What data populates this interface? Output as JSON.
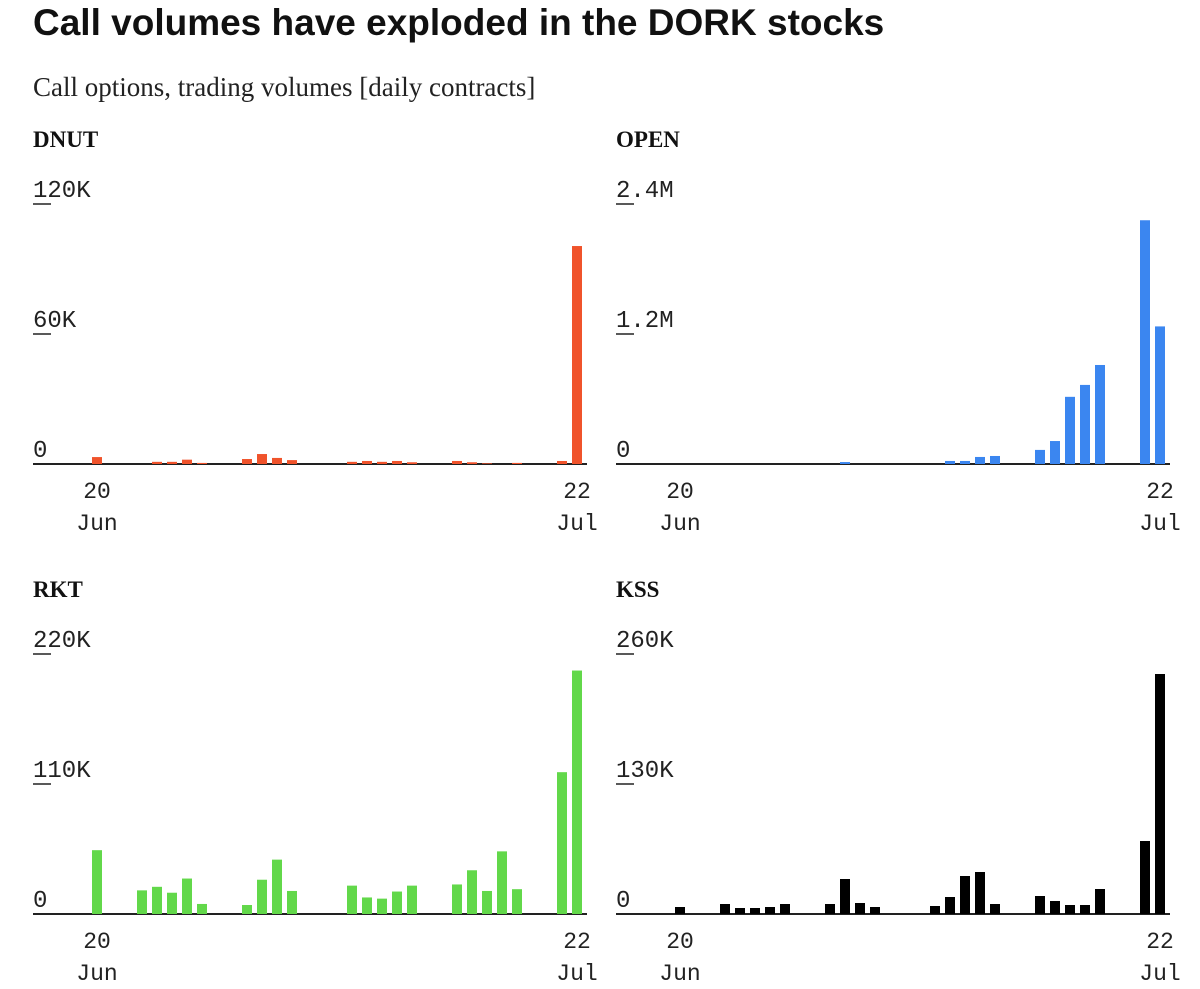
{
  "title": "Call volumes have exploded in the DORK stocks",
  "subtitle": "Call options, trading volumes [daily contracts]",
  "chart_data": [
    {
      "type": "bar",
      "title": "DNUT",
      "color": "#f0532b",
      "categories": [
        "20 Jun",
        null,
        null,
        null,
        null,
        null,
        null,
        null,
        null,
        null,
        null,
        null,
        null,
        null,
        null,
        null,
        null,
        null,
        null,
        null,
        null,
        null,
        null,
        null,
        null,
        null,
        null,
        null,
        null,
        null,
        null,
        null,
        "22 Jul"
      ],
      "values": [
        3200,
        null,
        null,
        0,
        1000,
        1000,
        2000,
        500,
        null,
        null,
        2300,
        4600,
        2800,
        1800,
        null,
        null,
        null,
        1000,
        1400,
        1000,
        1400,
        800,
        null,
        null,
        1400,
        800,
        300,
        0,
        500,
        null,
        null,
        1400,
        100600
      ],
      "ylim": [
        0,
        120000
      ],
      "yticks": [
        0,
        {
          "value": 60000,
          "label": "60K"
        },
        {
          "value": 120000,
          "label": "120K"
        }
      ]
    },
    {
      "type": "bar",
      "title": "OPEN",
      "color": "#3b86f0",
      "categories": [
        "20 Jun",
        null,
        null,
        null,
        null,
        null,
        null,
        null,
        null,
        null,
        null,
        null,
        null,
        null,
        null,
        null,
        null,
        null,
        null,
        null,
        null,
        null,
        null,
        null,
        null,
        null,
        null,
        null,
        null,
        null,
        null,
        null,
        "22 Jul"
      ],
      "values": [
        0,
        null,
        null,
        0,
        0,
        0,
        0,
        0,
        null,
        null,
        0,
        18000,
        0,
        0,
        null,
        null,
        null,
        0,
        28000,
        28000,
        65000,
        74000,
        null,
        null,
        130000,
        212000,
        620000,
        730000,
        914000,
        null,
        null,
        2250000,
        1270000
      ],
      "ylim": [
        0,
        2400000
      ],
      "yticks": [
        0,
        {
          "value": 1200000,
          "label": "1.2M"
        },
        {
          "value": 2400000,
          "label": "2.4M"
        }
      ]
    },
    {
      "type": "bar",
      "title": "RKT",
      "color": "#62d84a",
      "categories": [
        "20 Jun",
        null,
        null,
        null,
        null,
        null,
        null,
        null,
        null,
        null,
        null,
        null,
        null,
        null,
        null,
        null,
        null,
        null,
        null,
        null,
        null,
        null,
        null,
        null,
        null,
        null,
        null,
        null,
        null,
        null,
        null,
        null,
        "22 Jul"
      ],
      "values": [
        54000,
        null,
        null,
        20000,
        23000,
        18000,
        30000,
        8500,
        null,
        null,
        7600,
        29000,
        46000,
        19500,
        null,
        null,
        null,
        24000,
        14000,
        13000,
        19000,
        24000,
        null,
        null,
        25000,
        37000,
        19500,
        53000,
        21000,
        null,
        null,
        120000,
        206000
      ],
      "ylim": [
        0,
        220000
      ],
      "yticks": [
        0,
        {
          "value": 110000,
          "label": "110K"
        },
        {
          "value": 220000,
          "label": "220K"
        }
      ]
    },
    {
      "type": "bar",
      "title": "KSS",
      "color": "#000000",
      "categories": [
        "20 Jun",
        null,
        null,
        null,
        null,
        null,
        null,
        null,
        null,
        null,
        null,
        null,
        null,
        null,
        null,
        null,
        null,
        null,
        null,
        null,
        null,
        null,
        null,
        null,
        null,
        null,
        null,
        null,
        null,
        null,
        null,
        null,
        "22 Jul"
      ],
      "values": [
        7000,
        null,
        null,
        10000,
        6000,
        6000,
        7000,
        10000,
        null,
        null,
        10000,
        35000,
        11000,
        7000,
        null,
        null,
        null,
        8000,
        17000,
        38000,
        42000,
        10000,
        null,
        null,
        18000,
        13000,
        9000,
        9000,
        25000,
        null,
        null,
        73000,
        240000
      ],
      "ylim": [
        0,
        260000
      ],
      "yticks": [
        0,
        {
          "value": 130000,
          "label": "130K"
        },
        {
          "value": 260000,
          "label": "260K"
        }
      ]
    }
  ]
}
